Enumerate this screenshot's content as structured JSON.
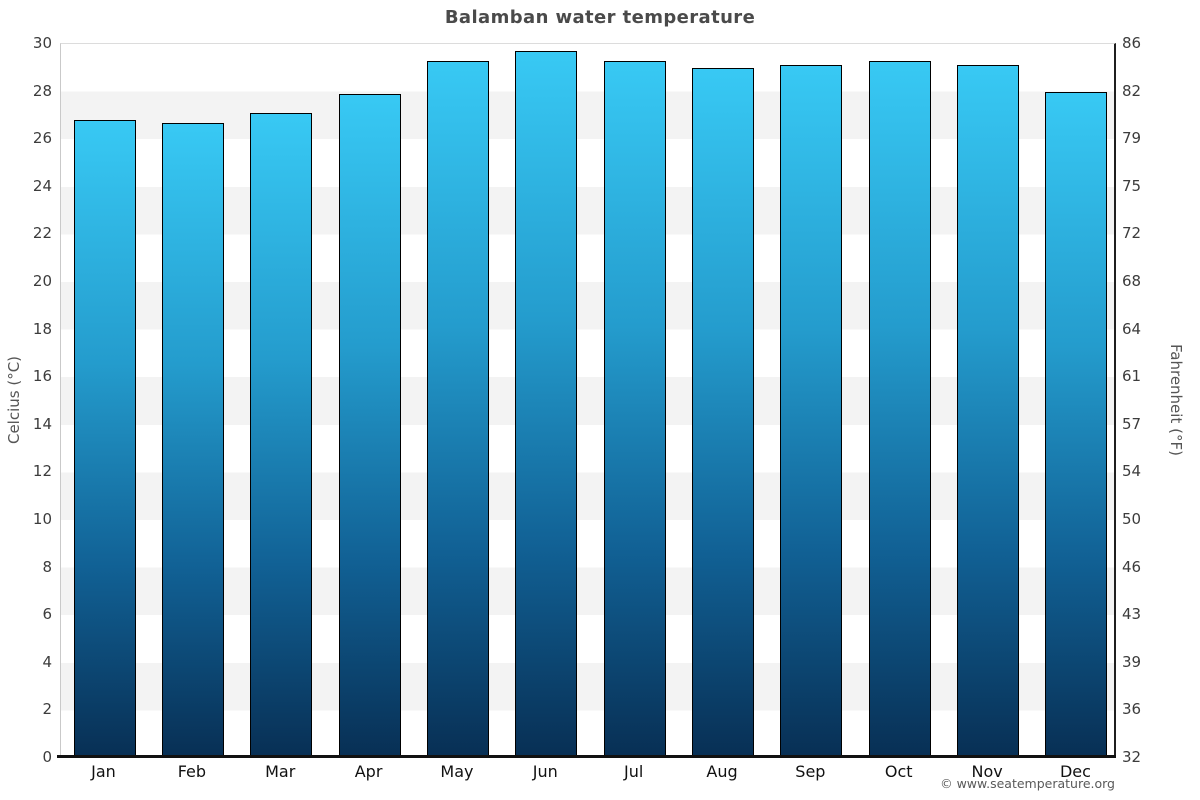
{
  "title": "Balamban water temperature",
  "footer": "© www.seatemperature.org",
  "axes": {
    "left_title": "Celcius (°C)",
    "right_title": "Fahrenheit (°F)"
  },
  "chart_data": {
    "type": "bar",
    "title": "Balamban water temperature",
    "categories": [
      "Jan",
      "Feb",
      "Mar",
      "Apr",
      "May",
      "Jun",
      "Jul",
      "Aug",
      "Sep",
      "Oct",
      "Nov",
      "Dec"
    ],
    "values": [
      26.8,
      26.7,
      27.1,
      27.9,
      29.3,
      29.7,
      29.3,
      29.0,
      29.1,
      29.3,
      29.1,
      28.0
    ],
    "unit": "°C",
    "ylabel_left": "Celcius (°C)",
    "ylabel_right": "Fahrenheit (°F)",
    "ylim": [
      0,
      30
    ],
    "yticks_celsius": [
      0,
      2,
      4,
      6,
      8,
      10,
      12,
      14,
      16,
      18,
      20,
      22,
      24,
      26,
      28,
      30
    ],
    "yticks_fahrenheit": [
      32,
      36,
      39,
      43,
      46,
      50,
      54,
      57,
      61,
      64,
      68,
      72,
      75,
      79,
      82,
      86
    ],
    "grid": "alternating horizontal bands every 2°C (white / light gray)",
    "legend": "none",
    "colors": {
      "bar_gradient_top": "#38c9f4",
      "bar_gradient_mid": "#1e93c6",
      "bar_gradient_bottom": "#082f54",
      "bar_border": "#000000",
      "band_gray": "#f3f3f3",
      "band_white": "#ffffff",
      "baseline": "#111111",
      "title_text": "#4a4a4a",
      "tick_text": "#3c3c3c",
      "axis_title_text": "#555555"
    }
  }
}
